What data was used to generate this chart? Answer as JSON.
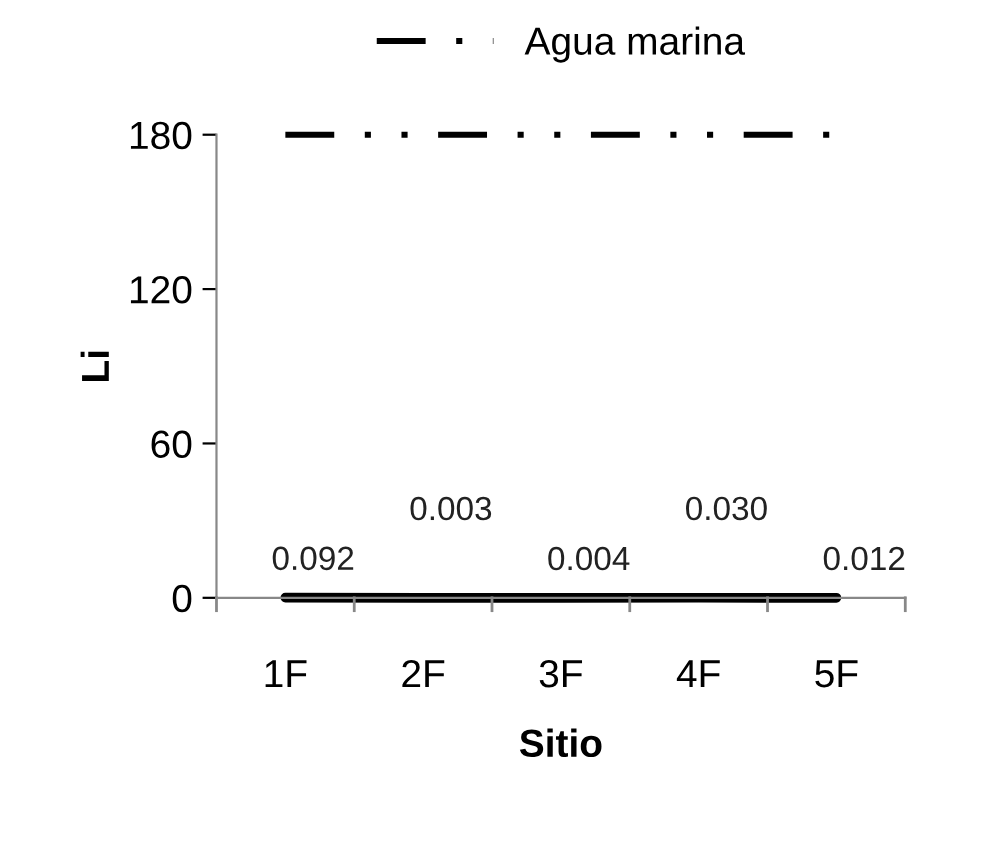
{
  "chart_data": {
    "type": "line",
    "xlabel": "Sitio",
    "ylabel": "Li",
    "categories": [
      "1F",
      "2F",
      "3F",
      "4F",
      "5F"
    ],
    "series": [
      {
        "color": "#000000",
        "values": [
          0.092,
          0.003,
          0.004,
          0.03,
          0.012
        ],
        "value_labels": [
          "0.092",
          "0.003",
          "0.004",
          "0.030",
          "0.012"
        ],
        "line_style": "solid"
      },
      {
        "name": "Agua marina",
        "color": "#000000",
        "values": [
          180,
          180,
          180,
          180,
          180
        ],
        "line_style": "dashdotdot"
      }
    ],
    "ylim": [
      0,
      180
    ],
    "yticks": [
      0,
      60,
      120,
      180
    ],
    "legend": "top",
    "grid": false,
    "marker": "none"
  }
}
